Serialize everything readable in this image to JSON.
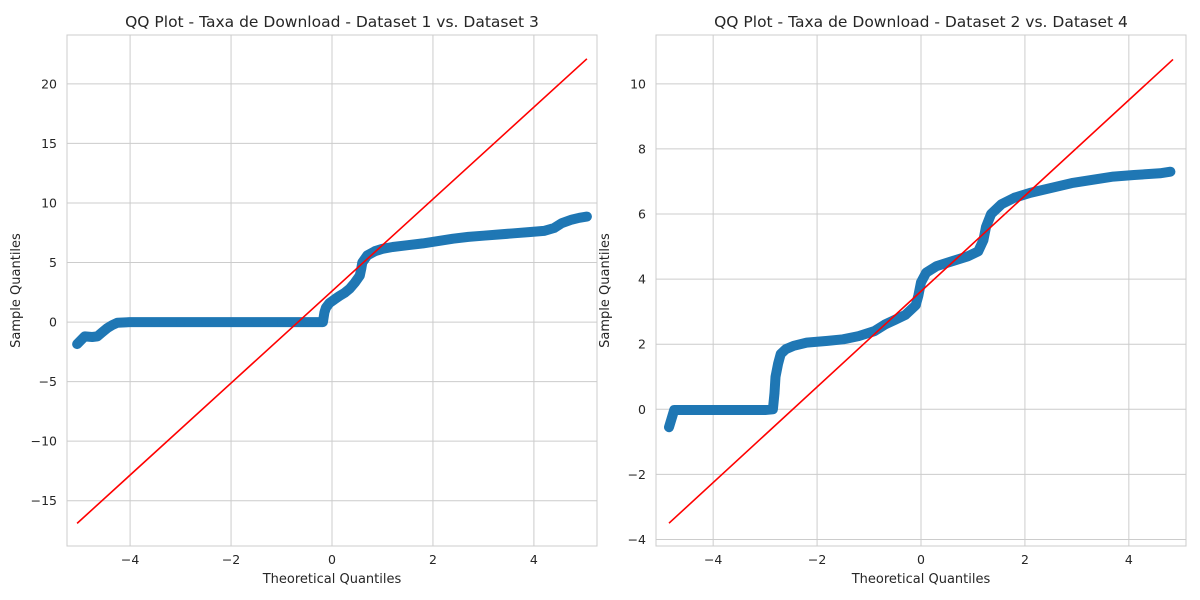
{
  "chart_data": [
    {
      "type": "scatter",
      "title": "QQ Plot - Taxa de Download - Dataset 1 vs. Dataset 3",
      "xlabel": "Theoretical Quantiles",
      "ylabel": "Sample Quantiles",
      "xlim": [
        -5.25,
        5.25
      ],
      "ylim": [
        -18.8,
        24.1
      ],
      "xticks": [
        -4,
        -2,
        0,
        2,
        4
      ],
      "xtick_labels": [
        "−4",
        "−2",
        "0",
        "2",
        "4"
      ],
      "yticks": [
        -15,
        -10,
        -5,
        0,
        5,
        10,
        15,
        20
      ],
      "ytick_labels": [
        "−15",
        "−10",
        "−5",
        "0",
        "5",
        "10",
        "15",
        "20"
      ],
      "grid": true,
      "point_color": "#1f77b4",
      "line_color": "#ff0000",
      "reference_line": {
        "x": [
          -5.05,
          5.05
        ],
        "y": [
          -16.9,
          22.1
        ]
      },
      "points": [
        [
          -5.05,
          -1.85
        ],
        [
          -4.9,
          -1.2
        ],
        [
          -4.75,
          -1.25
        ],
        [
          -4.65,
          -1.2
        ],
        [
          -4.55,
          -0.85
        ],
        [
          -4.45,
          -0.5
        ],
        [
          -4.35,
          -0.25
        ],
        [
          -4.25,
          -0.05
        ],
        [
          -4.0,
          0.0
        ],
        [
          -3.5,
          0.0
        ],
        [
          -3.0,
          0.0
        ],
        [
          -2.5,
          0.0
        ],
        [
          -2.0,
          0.0
        ],
        [
          -1.5,
          0.0
        ],
        [
          -1.0,
          0.0
        ],
        [
          -0.5,
          0.0
        ],
        [
          -0.18,
          0.0
        ],
        [
          -0.15,
          0.8
        ],
        [
          -0.12,
          1.2
        ],
        [
          -0.05,
          1.6
        ],
        [
          0.05,
          1.9
        ],
        [
          0.15,
          2.2
        ],
        [
          0.25,
          2.45
        ],
        [
          0.35,
          2.8
        ],
        [
          0.45,
          3.3
        ],
        [
          0.55,
          3.9
        ],
        [
          0.58,
          4.5
        ],
        [
          0.6,
          5.0
        ],
        [
          0.7,
          5.6
        ],
        [
          0.85,
          5.95
        ],
        [
          1.0,
          6.15
        ],
        [
          1.2,
          6.3
        ],
        [
          1.5,
          6.45
        ],
        [
          1.8,
          6.6
        ],
        [
          2.1,
          6.8
        ],
        [
          2.4,
          7.0
        ],
        [
          2.7,
          7.15
        ],
        [
          3.0,
          7.25
        ],
        [
          3.3,
          7.35
        ],
        [
          3.6,
          7.45
        ],
        [
          3.9,
          7.55
        ],
        [
          4.2,
          7.65
        ],
        [
          4.4,
          7.9
        ],
        [
          4.55,
          8.3
        ],
        [
          4.75,
          8.6
        ],
        [
          4.9,
          8.75
        ],
        [
          5.05,
          8.85
        ]
      ]
    },
    {
      "type": "scatter",
      "title": "QQ Plot - Taxa de Download - Dataset 2 vs. Dataset 4",
      "xlabel": "Theoretical Quantiles",
      "ylabel": "Sample Quantiles",
      "xlim": [
        -5.1,
        5.1
      ],
      "ylim": [
        -4.2,
        11.5
      ],
      "xticks": [
        -4,
        -2,
        0,
        2,
        4
      ],
      "xtick_labels": [
        "−4",
        "−2",
        "0",
        "2",
        "4"
      ],
      "yticks": [
        -4,
        -2,
        0,
        2,
        4,
        6,
        8,
        10
      ],
      "ytick_labels": [
        "−4",
        "−2",
        "0",
        "2",
        "4",
        "6",
        "8",
        "10"
      ],
      "grid": true,
      "point_color": "#1f77b4",
      "line_color": "#ff0000",
      "reference_line": {
        "x": [
          -4.85,
          4.85
        ],
        "y": [
          -3.5,
          10.75
        ]
      },
      "points": [
        [
          -4.85,
          -0.55
        ],
        [
          -4.75,
          -0.02
        ],
        [
          -4.5,
          -0.02
        ],
        [
          -4.0,
          -0.02
        ],
        [
          -3.5,
          -0.02
        ],
        [
          -3.0,
          -0.02
        ],
        [
          -2.85,
          0.0
        ],
        [
          -2.82,
          0.5
        ],
        [
          -2.8,
          1.0
        ],
        [
          -2.75,
          1.4
        ],
        [
          -2.7,
          1.7
        ],
        [
          -2.6,
          1.85
        ],
        [
          -2.45,
          1.95
        ],
        [
          -2.2,
          2.05
        ],
        [
          -1.8,
          2.1
        ],
        [
          -1.5,
          2.15
        ],
        [
          -1.2,
          2.25
        ],
        [
          -0.9,
          2.4
        ],
        [
          -0.7,
          2.6
        ],
        [
          -0.5,
          2.75
        ],
        [
          -0.3,
          2.9
        ],
        [
          -0.1,
          3.2
        ],
        [
          -0.05,
          3.5
        ],
        [
          0.0,
          3.9
        ],
        [
          0.1,
          4.2
        ],
        [
          0.3,
          4.4
        ],
        [
          0.6,
          4.55
        ],
        [
          0.9,
          4.7
        ],
        [
          1.1,
          4.85
        ],
        [
          1.2,
          5.2
        ],
        [
          1.25,
          5.6
        ],
        [
          1.35,
          6.0
        ],
        [
          1.55,
          6.3
        ],
        [
          1.8,
          6.5
        ],
        [
          2.1,
          6.65
        ],
        [
          2.5,
          6.8
        ],
        [
          2.9,
          6.95
        ],
        [
          3.3,
          7.05
        ],
        [
          3.7,
          7.15
        ],
        [
          4.1,
          7.2
        ],
        [
          4.6,
          7.25
        ],
        [
          4.8,
          7.3
        ]
      ]
    }
  ]
}
